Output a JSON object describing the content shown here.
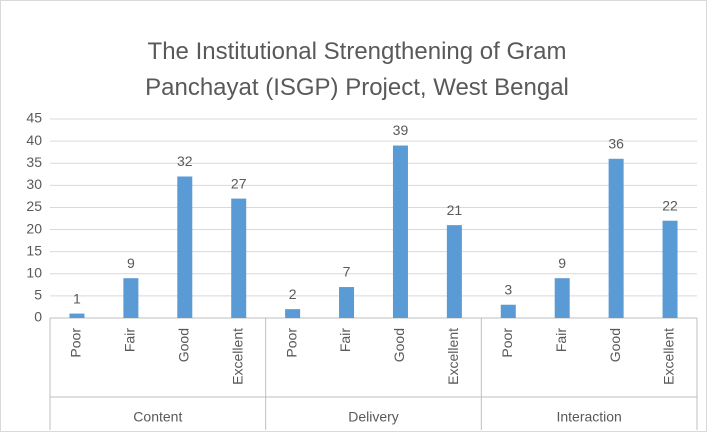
{
  "chart_data": {
    "type": "bar",
    "title": "The Institutional Strengthening of Gram Panchayat (ISGP) Project, West Bengal",
    "color": "#5b9bd5",
    "groups": [
      {
        "name": "Content",
        "categories": [
          "Poor",
          "Fair",
          "Good",
          "Excellent"
        ],
        "values": [
          1,
          9,
          32,
          27
        ]
      },
      {
        "name": "Delivery",
        "categories": [
          "Poor",
          "Fair",
          "Good",
          "Excellent"
        ],
        "values": [
          2,
          7,
          39,
          21
        ]
      },
      {
        "name": "Interaction",
        "categories": [
          "Poor",
          "Fair",
          "Good",
          "Excellent"
        ],
        "values": [
          3,
          9,
          36,
          22
        ]
      }
    ],
    "ylim": [
      0,
      45
    ],
    "yticks": [
      0,
      5,
      10,
      15,
      20,
      25,
      30,
      35,
      40,
      45
    ],
    "grid": true
  }
}
